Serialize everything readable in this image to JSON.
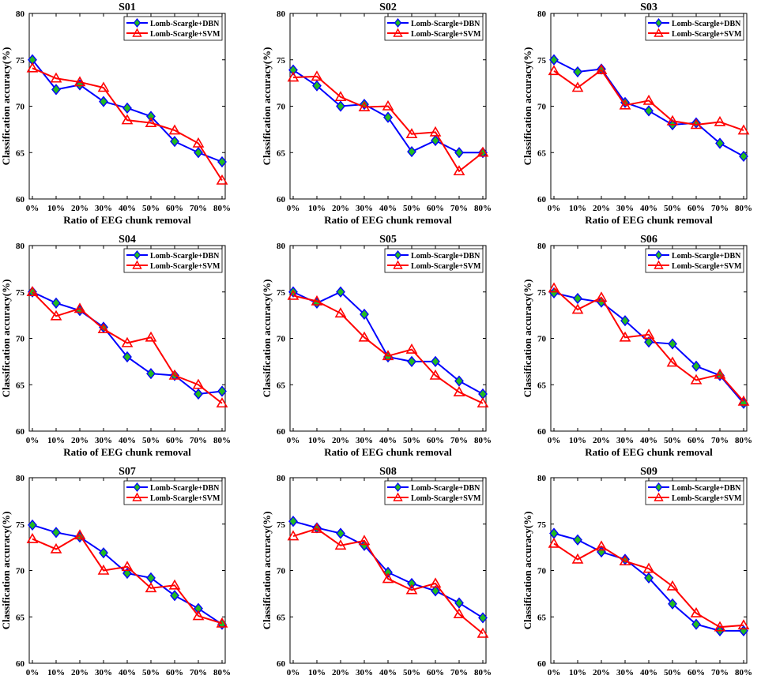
{
  "common": {
    "xlabel": "Ratio of EEG chunk removal",
    "ylabel": "Classification accuracy(%)",
    "categories": [
      "0%",
      "10%",
      "20%",
      "30%",
      "40%",
      "50%",
      "60%",
      "70%",
      "80%"
    ],
    "yticks": [
      60,
      65,
      70,
      75,
      80
    ],
    "ylim": [
      60,
      80
    ],
    "legend": [
      "Lomb-Scargle+DBN",
      "Lomb-Scargle+SVM"
    ],
    "colors": {
      "dbn_line": "#0000ff",
      "dbn_marker": "#22bb22",
      "svm": "#ff0000"
    }
  },
  "chart_data": [
    {
      "type": "line",
      "title": "S01",
      "xlabel": "Ratio of EEG chunk removal",
      "ylabel": "Classification accuracy(%)",
      "ylim": [
        60,
        80
      ],
      "legend_position": "top-right",
      "categories": [
        "0%",
        "10%",
        "20%",
        "30%",
        "40%",
        "50%",
        "60%",
        "70%",
        "80%"
      ],
      "series": [
        {
          "name": "Lomb-Scargle+DBN",
          "values": [
            75.0,
            71.8,
            72.3,
            70.5,
            69.8,
            68.9,
            66.2,
            65.0,
            64.0
          ]
        },
        {
          "name": "Lomb-Scargle+SVM",
          "values": [
            74.1,
            73.0,
            72.6,
            72.0,
            68.5,
            68.2,
            67.4,
            66.0,
            62.0
          ]
        }
      ]
    },
    {
      "type": "line",
      "title": "S02",
      "xlabel": "Ratio of EEG chunk removal",
      "ylabel": "Classification accuracy(%)",
      "ylim": [
        60,
        80
      ],
      "legend_position": "top-right",
      "categories": [
        "0%",
        "10%",
        "20%",
        "30%",
        "40%",
        "50%",
        "60%",
        "70%",
        "80%"
      ],
      "series": [
        {
          "name": "Lomb-Scargle+DBN",
          "values": [
            73.9,
            72.2,
            70.0,
            70.2,
            68.8,
            65.1,
            66.3,
            65.0,
            65.0
          ]
        },
        {
          "name": "Lomb-Scargle+SVM",
          "values": [
            73.1,
            73.2,
            71.0,
            69.9,
            70.0,
            67.0,
            67.2,
            63.0,
            65.0
          ]
        }
      ]
    },
    {
      "type": "line",
      "title": "S03",
      "xlabel": "Ratio of EEG chunk removal",
      "ylabel": "Classification accuracy(%)",
      "ylim": [
        60,
        80
      ],
      "legend_position": "top-right",
      "categories": [
        "0%",
        "10%",
        "20%",
        "30%",
        "40%",
        "50%",
        "60%",
        "70%",
        "80%"
      ],
      "series": [
        {
          "name": "Lomb-Scargle+DBN",
          "values": [
            75.0,
            73.7,
            74.0,
            70.4,
            69.5,
            68.0,
            68.2,
            66.0,
            64.6
          ]
        },
        {
          "name": "Lomb-Scargle+SVM",
          "values": [
            73.8,
            72.0,
            73.9,
            70.1,
            70.6,
            68.4,
            68.0,
            68.3,
            67.4
          ]
        }
      ]
    },
    {
      "type": "line",
      "title": "S04",
      "xlabel": "Ratio of EEG chunk removal",
      "ylabel": "Classification accuracy(%)",
      "ylim": [
        60,
        80
      ],
      "legend_position": "top-right",
      "categories": [
        "0%",
        "10%",
        "20%",
        "30%",
        "40%",
        "50%",
        "60%",
        "70%",
        "80%"
      ],
      "series": [
        {
          "name": "Lomb-Scargle+DBN",
          "values": [
            75.0,
            73.8,
            73.0,
            71.2,
            68.0,
            66.2,
            66.0,
            64.0,
            64.3
          ]
        },
        {
          "name": "Lomb-Scargle+SVM",
          "values": [
            75.0,
            72.4,
            73.2,
            71.0,
            69.5,
            70.1,
            66.0,
            65.0,
            63.0
          ]
        }
      ]
    },
    {
      "type": "line",
      "title": "S05",
      "xlabel": "Ratio of EEG chunk removal",
      "ylabel": "Classification accuracy(%)",
      "ylim": [
        60,
        80
      ],
      "legend_position": "top-right",
      "categories": [
        "0%",
        "10%",
        "20%",
        "30%",
        "40%",
        "50%",
        "60%",
        "70%",
        "80%"
      ],
      "series": [
        {
          "name": "Lomb-Scargle+DBN",
          "values": [
            75.0,
            73.8,
            75.0,
            72.6,
            68.0,
            67.5,
            67.5,
            65.4,
            64.0
          ]
        },
        {
          "name": "Lomb-Scargle+SVM",
          "values": [
            74.6,
            74.0,
            72.7,
            70.1,
            68.1,
            68.8,
            66.0,
            64.2,
            63.0
          ]
        }
      ]
    },
    {
      "type": "line",
      "title": "S06",
      "xlabel": "Ratio of EEG chunk removal",
      "ylabel": "Classification accuracy(%)",
      "ylim": [
        60,
        80
      ],
      "legend_position": "top-right",
      "categories": [
        "0%",
        "10%",
        "20%",
        "30%",
        "40%",
        "50%",
        "60%",
        "70%",
        "80%"
      ],
      "series": [
        {
          "name": "Lomb-Scargle+DBN",
          "values": [
            74.9,
            74.3,
            73.9,
            71.9,
            69.6,
            69.4,
            67.0,
            66.0,
            63.0
          ]
        },
        {
          "name": "Lomb-Scargle+SVM",
          "values": [
            75.4,
            73.1,
            74.4,
            70.1,
            70.4,
            67.4,
            65.5,
            66.1,
            63.2
          ]
        }
      ]
    },
    {
      "type": "line",
      "title": "S07",
      "xlabel": "Ratio of EEG chunk removal",
      "ylabel": "Classification accuracy(%)",
      "ylim": [
        60,
        80
      ],
      "legend_position": "top-right",
      "categories": [
        "0%",
        "10%",
        "20%",
        "30%",
        "40%",
        "50%",
        "60%",
        "70%",
        "80%"
      ],
      "series": [
        {
          "name": "Lomb-Scargle+DBN",
          "values": [
            74.9,
            74.1,
            73.6,
            71.9,
            69.7,
            69.2,
            67.3,
            65.9,
            64.2
          ]
        },
        {
          "name": "Lomb-Scargle+SVM",
          "values": [
            73.4,
            72.3,
            73.8,
            70.0,
            70.4,
            68.1,
            68.4,
            65.1,
            64.3
          ]
        }
      ]
    },
    {
      "type": "line",
      "title": "S08",
      "xlabel": "Ratio of EEG chunk removal",
      "ylabel": "Classification accuracy(%)",
      "ylim": [
        60,
        80
      ],
      "legend_position": "top-right",
      "categories": [
        "0%",
        "10%",
        "20%",
        "30%",
        "40%",
        "50%",
        "60%",
        "70%",
        "80%"
      ],
      "series": [
        {
          "name": "Lomb-Scargle+DBN",
          "values": [
            75.3,
            74.6,
            74.0,
            72.7,
            69.8,
            68.6,
            67.8,
            66.5,
            64.9
          ]
        },
        {
          "name": "Lomb-Scargle+SVM",
          "values": [
            73.7,
            74.5,
            72.7,
            73.2,
            69.1,
            67.9,
            68.6,
            65.3,
            63.2
          ]
        }
      ]
    },
    {
      "type": "line",
      "title": "S09",
      "xlabel": "Ratio of EEG chunk removal",
      "ylabel": "Classification accuracy(%)",
      "ylim": [
        60,
        80
      ],
      "legend_position": "top-right",
      "categories": [
        "0%",
        "10%",
        "20%",
        "30%",
        "40%",
        "50%",
        "60%",
        "70%",
        "80%"
      ],
      "series": [
        {
          "name": "Lomb-Scargle+DBN",
          "values": [
            74.0,
            73.3,
            72.0,
            71.2,
            69.2,
            66.4,
            64.2,
            63.5,
            63.5
          ]
        },
        {
          "name": "Lomb-Scargle+SVM",
          "values": [
            72.9,
            71.2,
            72.6,
            71.0,
            70.2,
            68.3,
            65.4,
            63.9,
            64.1
          ]
        }
      ]
    }
  ]
}
